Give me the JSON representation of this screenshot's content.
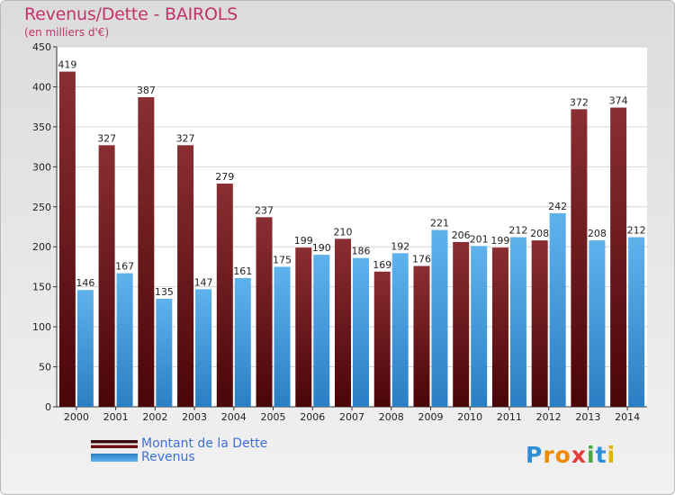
{
  "title": "Revenus/Dette - BAIROLS",
  "subtitle": "(en milliers d'€)",
  "colors": {
    "dette": "#6b0f12",
    "revenus": "#3d9be0",
    "title": "#c2336b",
    "legend_text": "#3d6fd6"
  },
  "chart_data": {
    "type": "bar",
    "categories": [
      "2000",
      "2001",
      "2002",
      "2003",
      "2004",
      "2005",
      "2006",
      "2007",
      "2008",
      "2009",
      "2010",
      "2011",
      "2012",
      "2013",
      "2014"
    ],
    "series": [
      {
        "name": "Montant de la Dette",
        "values": [
          419,
          327,
          387,
          327,
          279,
          237,
          199,
          210,
          169,
          176,
          206,
          199,
          208,
          372,
          374
        ]
      },
      {
        "name": "Revenus",
        "values": [
          146,
          167,
          135,
          147,
          161,
          175,
          190,
          186,
          192,
          221,
          201,
          212,
          242,
          208,
          212
        ]
      }
    ],
    "data_labels": [
      [
        "419",
        "327",
        "387",
        "327",
        "279",
        "237",
        "199",
        "210",
        "169",
        "176",
        "206",
        "199",
        "208",
        "372",
        "374"
      ],
      [
        "146",
        "167",
        "135",
        "147",
        "161",
        "175",
        "190",
        "186",
        "192",
        "221",
        "201",
        "212",
        "242",
        "208",
        "212"
      ]
    ],
    "y_ticks": [
      "0",
      "50",
      "100",
      "150",
      "200",
      "250",
      "300",
      "350",
      "400",
      "450"
    ],
    "ylim": [
      0,
      450
    ],
    "grid": true,
    "legend_position": "bottom-left"
  },
  "logo_text": "Proxiti"
}
